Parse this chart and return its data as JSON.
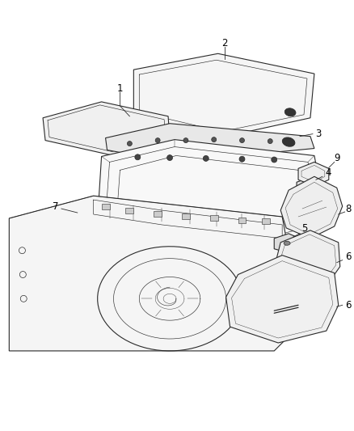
{
  "background_color": "#ffffff",
  "fig_width": 4.38,
  "fig_height": 5.33,
  "dpi": 100,
  "line_color": "#2a2a2a",
  "lw_main": 0.8,
  "lw_detail": 0.45,
  "lw_thin": 0.3
}
